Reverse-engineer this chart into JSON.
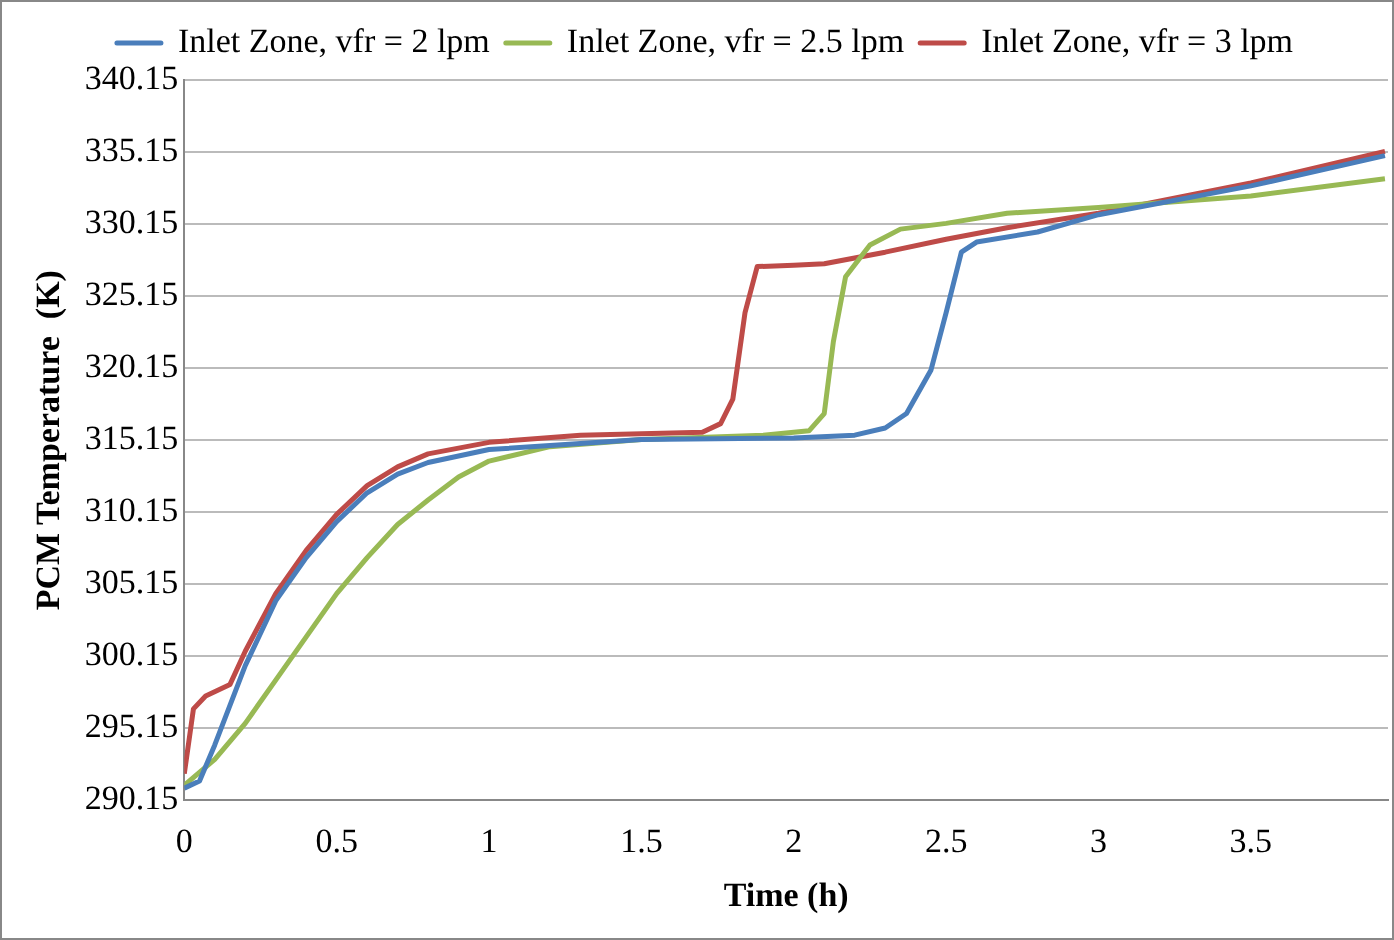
{
  "chart_data": {
    "type": "line",
    "xlabel": "Time (h)",
    "ylabel": "PCM Temperature  (K)",
    "xlim": [
      0,
      3.95
    ],
    "xticks": [
      0,
      0.5,
      1,
      1.5,
      2,
      2.5,
      3,
      3.5
    ],
    "ylim": [
      290.15,
      340.15
    ],
    "yticks": [
      290.15,
      295.15,
      300.15,
      305.15,
      310.15,
      315.15,
      320.15,
      325.15,
      330.15,
      335.15,
      340.15
    ],
    "grid": "y",
    "legend": "top",
    "marker": "none",
    "line_style": "solid",
    "series": [
      {
        "name": "Inlet Zone, vfr = 2 lpm",
        "color": "#4a7ebb",
        "x": [
          0,
          0.05,
          0.1,
          0.2,
          0.3,
          0.4,
          0.5,
          0.6,
          0.7,
          0.8,
          1.0,
          1.5,
          2.0,
          2.2,
          2.3,
          2.37,
          2.45,
          2.5,
          2.55,
          2.6,
          2.8,
          3.0,
          3.5,
          3.94
        ],
        "values": [
          291,
          291.5,
          294,
          299.5,
          304,
          307,
          309.5,
          311.5,
          312.8,
          313.6,
          314.5,
          315.2,
          315.3,
          315.5,
          316,
          317,
          320,
          324,
          328.2,
          328.9,
          329.6,
          330.8,
          332.8,
          334.9
        ]
      },
      {
        "name": "Inlet Zone, vfr = 2.5 lpm",
        "color": "#98b954",
        "x": [
          0,
          0.1,
          0.2,
          0.3,
          0.4,
          0.5,
          0.6,
          0.7,
          0.8,
          0.9,
          1.0,
          1.2,
          1.5,
          1.9,
          2.05,
          2.1,
          2.13,
          2.17,
          2.25,
          2.35,
          2.5,
          2.7,
          3.0,
          3.5,
          3.94
        ],
        "values": [
          291.2,
          293,
          295.5,
          298.5,
          301.5,
          304.5,
          307,
          309.3,
          311,
          312.6,
          313.7,
          314.7,
          315.2,
          315.5,
          315.8,
          317,
          322,
          326.5,
          328.7,
          329.8,
          330.2,
          330.9,
          331.3,
          332.1,
          333.3
        ]
      },
      {
        "name": "Inlet Zone, vfr = 3 lpm",
        "color": "#be4b48",
        "x": [
          0,
          0.03,
          0.07,
          0.15,
          0.2,
          0.3,
          0.4,
          0.5,
          0.6,
          0.7,
          0.8,
          1.0,
          1.3,
          1.7,
          1.76,
          1.8,
          1.84,
          1.88,
          2.0,
          2.1,
          2.3,
          2.5,
          2.7,
          3.0,
          3.5,
          3.94
        ],
        "values": [
          292,
          296.5,
          297.4,
          298.2,
          300.5,
          304.5,
          307.5,
          310,
          312,
          313.3,
          314.2,
          315,
          315.5,
          315.7,
          316.3,
          318,
          324,
          327.2,
          327.3,
          327.4,
          328.2,
          329.1,
          329.9,
          330.9,
          333,
          335.2
        ]
      }
    ]
  }
}
